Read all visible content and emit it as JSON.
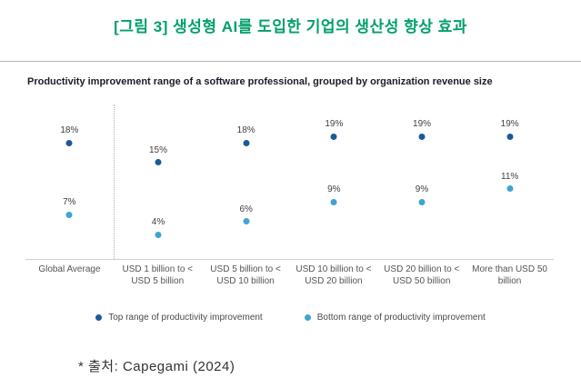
{
  "page": {
    "title": "[그림 3] 생성형 AI를 도입한 기업의 생산성 향상 효과",
    "title_color": "#00a06a",
    "source_note": "* 출처: Capegami (2024)"
  },
  "chart_data": {
    "type": "scatter",
    "title": "Productivity improvement range of a software professional, grouped by organization revenue size",
    "categories": [
      "Global Average",
      "USD 1 billion to < USD 5 billion",
      "USD 5 billion to < USD 10 billion",
      "USD 10 billion to < USD 20 billion",
      "USD 20 billion to < USD 50 billion",
      "More than USD 50 billion"
    ],
    "series": [
      {
        "name": "Top range of productivity improvement",
        "color": "#1b5a99",
        "values": [
          18,
          15,
          18,
          19,
          19,
          19
        ]
      },
      {
        "name": "Bottom range of productivity improvement",
        "color": "#3fa3d4",
        "values": [
          7,
          4,
          6,
          9,
          9,
          11
        ]
      }
    ],
    "value_suffix": "%",
    "ylim": [
      0,
      22
    ],
    "grid": false,
    "legend_position": "bottom",
    "separator_after_category": "Global Average"
  }
}
